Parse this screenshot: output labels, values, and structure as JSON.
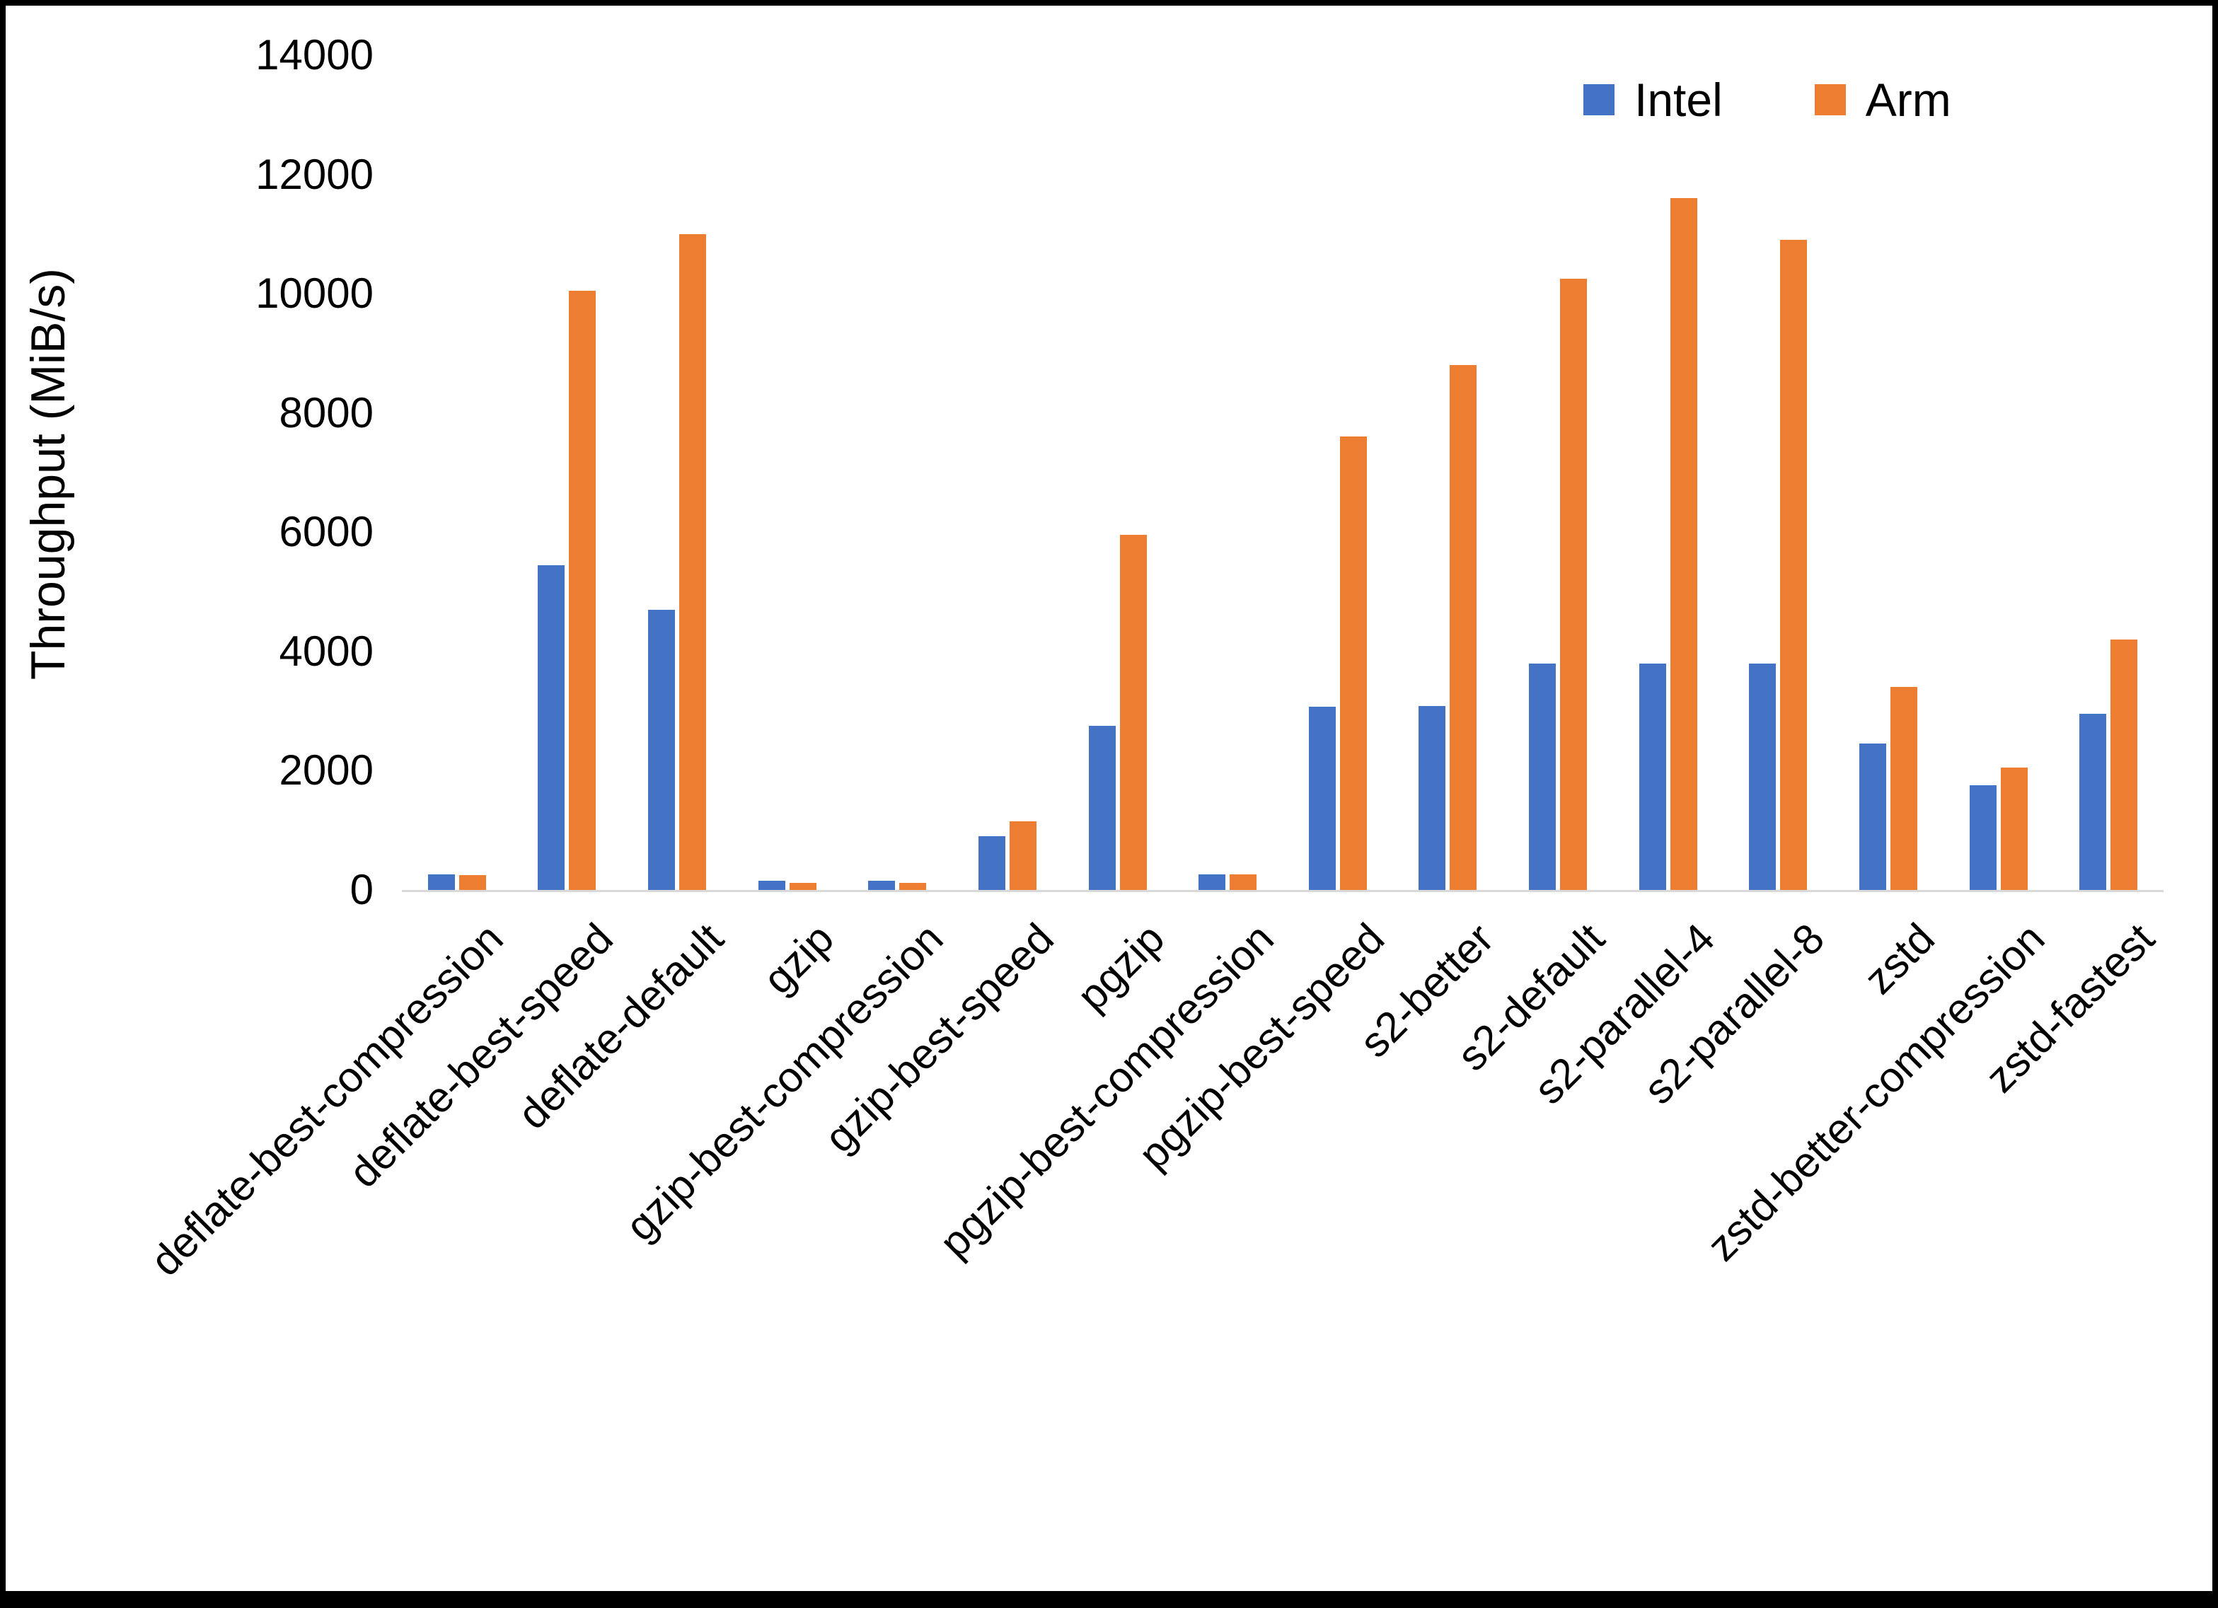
{
  "chart_data": {
    "type": "bar",
    "title": "",
    "xlabel": "",
    "ylabel": "Throughput (MiB/s)",
    "ylim": [
      0,
      14000
    ],
    "y_ticks": [
      0,
      2000,
      4000,
      6000,
      8000,
      10000,
      12000,
      14000
    ],
    "grid": false,
    "legend_position": "top-right",
    "categories": [
      "deflate-best-compression",
      "deflate-best-speed",
      "deflate-default",
      "gzip",
      "gzip-best-compression",
      "gzip-best-speed",
      "pgzip",
      "pgzip-best-compression",
      "pgzip-best-speed",
      "s2-better",
      "s2-default",
      "s2-parallel-4",
      "s2-parallel-8",
      "zstd",
      "zstd-better-compression",
      "zstd-fastest"
    ],
    "series": [
      {
        "name": "Intel",
        "color": "#4472C4",
        "values": [
          260,
          5450,
          4700,
          150,
          150,
          900,
          2750,
          260,
          3070,
          3080,
          3800,
          3800,
          3800,
          2450,
          1750,
          2950
        ]
      },
      {
        "name": "Arm",
        "color": "#ED7D31",
        "values": [
          250,
          10050,
          11000,
          120,
          120,
          1150,
          5950,
          260,
          7600,
          8800,
          10250,
          11600,
          10900,
          3400,
          2050,
          4200
        ]
      }
    ]
  }
}
